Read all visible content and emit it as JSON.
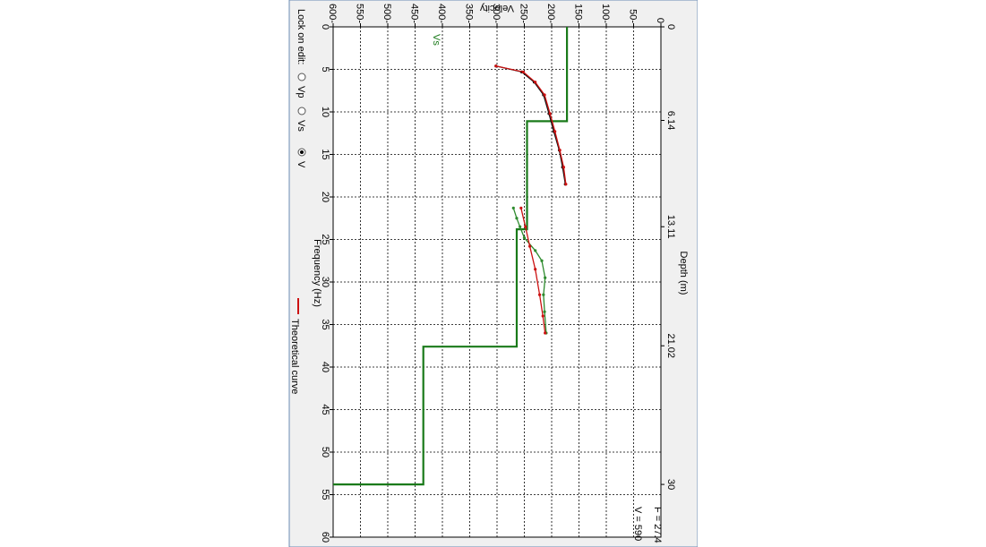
{
  "chart_data": {
    "type": "line",
    "rotated": "90deg clockwise",
    "xlabel": "Frequency (Hz)",
    "ylabel": "Velocity",
    "xlim": [
      0,
      60
    ],
    "ylim": [
      0,
      600
    ],
    "x_ticks": [
      0,
      5,
      10,
      15,
      20,
      25,
      30,
      35,
      40,
      45,
      50,
      55,
      60
    ],
    "y_ticks": [
      50,
      100,
      150,
      200,
      250,
      300,
      350,
      400,
      450,
      500,
      550,
      600
    ],
    "depth_axis": {
      "label": "Depth (m)",
      "ticks": [
        {
          "freq": 0,
          "label": "0"
        },
        {
          "freq": 11,
          "label": "6.14"
        },
        {
          "freq": 23.5,
          "label": "13.11"
        },
        {
          "freq": 37.5,
          "label": "21.02"
        },
        {
          "freq": 53.8,
          "label": "30"
        }
      ]
    },
    "series": [
      {
        "name": "Vs",
        "color": "#1a7a1a",
        "style": "step",
        "points": [
          [
            0,
            172
          ],
          [
            11.1,
            172
          ],
          [
            11.1,
            245
          ],
          [
            23.8,
            245
          ],
          [
            23.8,
            264
          ],
          [
            37.6,
            264
          ],
          [
            37.6,
            435
          ],
          [
            53.8,
            435
          ],
          [
            53.8,
            600
          ]
        ]
      },
      {
        "name": "",
        "color": "#111111",
        "style": "observed",
        "points": [
          [
            4.6,
            302
          ],
          [
            5.3,
            255
          ],
          [
            6.5,
            232
          ],
          [
            8.0,
            215
          ],
          [
            10.2,
            205
          ],
          [
            12.3,
            196
          ],
          [
            14.5,
            186
          ],
          [
            16.5,
            180
          ],
          [
            18.5,
            175
          ]
        ]
      },
      {
        "name": "Theoretical curve",
        "color": "#cc1111",
        "style": "theoretical",
        "points": [
          [
            4.6,
            302
          ],
          [
            5.3,
            252
          ],
          [
            6.5,
            230
          ],
          [
            8.0,
            213
          ],
          [
            10.2,
            203
          ],
          [
            12.3,
            194
          ],
          [
            14.5,
            185
          ],
          [
            16.5,
            178
          ],
          [
            18.5,
            174
          ]
        ]
      },
      {
        "name": "",
        "color": "#2e8b2e",
        "style": "observed-2",
        "points": [
          [
            21.3,
            270
          ],
          [
            22.5,
            264
          ],
          [
            23.5,
            258
          ],
          [
            24.8,
            250
          ],
          [
            26.3,
            230
          ],
          [
            27.5,
            218
          ],
          [
            29.5,
            212
          ],
          [
            31.5,
            215
          ],
          [
            33.5,
            213
          ],
          [
            36.0,
            210
          ]
        ]
      },
      {
        "name": "",
        "color": "#cc1111",
        "style": "theoretical-2",
        "points": [
          [
            21.3,
            256
          ],
          [
            23.5,
            248
          ],
          [
            25.8,
            240
          ],
          [
            28.5,
            230
          ],
          [
            31.5,
            222
          ],
          [
            34.0,
            216
          ],
          [
            36.0,
            212
          ]
        ]
      }
    ],
    "readout": {
      "f_label": "F = 27.4",
      "v_label": "V = 590"
    },
    "legend": {
      "position": "bottom",
      "label": "Theoretical curve"
    }
  },
  "lock": {
    "label": "Lock on edit:",
    "options": [
      {
        "label": "Vp",
        "selected": false
      },
      {
        "label": "Vs",
        "selected": false
      },
      {
        "label": "V",
        "selected": true
      }
    ]
  }
}
